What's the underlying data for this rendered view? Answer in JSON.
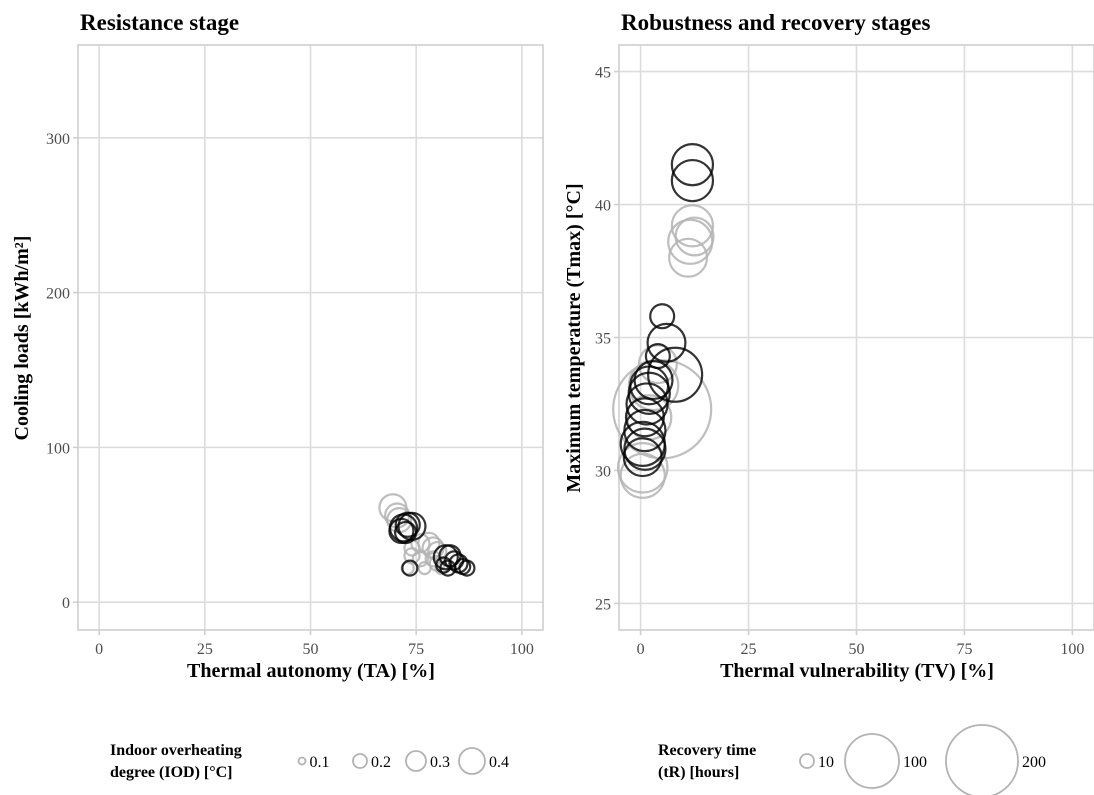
{
  "chart_data": [
    {
      "type": "scatter",
      "title": "Resistance stage",
      "xlabel": "Thermal autonomy (TA) [%]",
      "ylabel": "Cooling loads [kWh/m²]",
      "xlim": [
        -5,
        105
      ],
      "ylim": [
        -18,
        360
      ],
      "xticks": [
        0,
        25,
        50,
        75,
        100
      ],
      "yticks": [
        0,
        100,
        200,
        300
      ],
      "grid": true,
      "size_variable": "Indoor overheating degree (IOD) [°C]",
      "series": [
        {
          "name": "dark",
          "color": "#000000",
          "points": [
            {
              "x": 72,
              "y": 48,
              "s": 0.35
            },
            {
              "x": 71.5,
              "y": 46,
              "s": 0.3
            },
            {
              "x": 73,
              "y": 50,
              "s": 0.3
            },
            {
              "x": 74,
              "y": 49,
              "s": 0.35
            },
            {
              "x": 72.5,
              "y": 45,
              "s": 0.25
            },
            {
              "x": 82,
              "y": 29,
              "s": 0.3
            },
            {
              "x": 83,
              "y": 30,
              "s": 0.25
            },
            {
              "x": 84,
              "y": 27,
              "s": 0.2
            },
            {
              "x": 85,
              "y": 25,
              "s": 0.2
            },
            {
              "x": 86,
              "y": 23,
              "s": 0.15
            },
            {
              "x": 87,
              "y": 22,
              "s": 0.15
            },
            {
              "x": 81.5,
              "y": 24,
              "s": 0.15
            },
            {
              "x": 82.5,
              "y": 22,
              "s": 0.15
            },
            {
              "x": 73.5,
              "y": 22,
              "s": 0.15
            }
          ]
        },
        {
          "name": "light",
          "color": "#b3b3b3",
          "points": [
            {
              "x": 69.5,
              "y": 61,
              "s": 0.35
            },
            {
              "x": 70.5,
              "y": 56,
              "s": 0.3
            },
            {
              "x": 71,
              "y": 53,
              "s": 0.3
            },
            {
              "x": 74,
              "y": 35,
              "s": 0.15
            },
            {
              "x": 74,
              "y": 30,
              "s": 0.15
            },
            {
              "x": 76,
              "y": 28,
              "s": 0.15
            },
            {
              "x": 77,
              "y": 22,
              "s": 0.1
            },
            {
              "x": 78,
              "y": 38,
              "s": 0.25
            },
            {
              "x": 79,
              "y": 35,
              "s": 0.25
            },
            {
              "x": 80,
              "y": 33,
              "s": 0.2
            },
            {
              "x": 79,
              "y": 28,
              "s": 0.15
            },
            {
              "x": 80,
              "y": 25,
              "s": 0.15
            },
            {
              "x": 81,
              "y": 22,
              "s": 0.1
            },
            {
              "x": 73,
              "y": 22,
              "s": 0.1
            },
            {
              "x": 76,
              "y": 38,
              "s": 0.2
            }
          ]
        }
      ],
      "legend": {
        "title": "Indoor overheating degree (IOD) [°C]",
        "position": "bottom",
        "entries": [
          "0.1",
          "0.2",
          "0.3",
          "0.4"
        ]
      }
    },
    {
      "type": "scatter",
      "title": "Robustness and recovery stages",
      "xlabel": "Thermal vulnerability (TV) [%]",
      "ylabel": "Maximum temperature (Tmax) [°C]",
      "xlim": [
        -5,
        105
      ],
      "ylim": [
        24,
        46
      ],
      "xticks": [
        0,
        25,
        50,
        75,
        100
      ],
      "yticks": [
        25,
        30,
        35,
        40,
        45
      ],
      "grid": true,
      "size_variable": "Recovery time (tR) [hours]",
      "series": [
        {
          "name": "dark",
          "color": "#000000",
          "points": [
            {
              "x": 12,
              "y": 41.5,
              "s": 50
            },
            {
              "x": 12,
              "y": 40.9,
              "s": 50
            },
            {
              "x": 5,
              "y": 35.8,
              "s": 10
            },
            {
              "x": 6,
              "y": 34.8,
              "s": 40
            },
            {
              "x": 8,
              "y": 33.6,
              "s": 100
            },
            {
              "x": 4,
              "y": 34.3,
              "s": 10
            },
            {
              "x": 3,
              "y": 33.4,
              "s": 40
            },
            {
              "x": 2,
              "y": 32.9,
              "s": 50
            },
            {
              "x": 1.5,
              "y": 32.5,
              "s": 50
            },
            {
              "x": 1,
              "y": 32,
              "s": 40
            },
            {
              "x": 1,
              "y": 31.5,
              "s": 50
            },
            {
              "x": 0.5,
              "y": 31,
              "s": 60
            },
            {
              "x": 0.5,
              "y": 30.5,
              "s": 40
            },
            {
              "x": 1,
              "y": 30.8,
              "s": 50
            },
            {
              "x": 2,
              "y": 33.2,
              "s": 40
            }
          ]
        },
        {
          "name": "light",
          "color": "#b3b3b3",
          "points": [
            {
              "x": 12,
              "y": 39.2,
              "s": 50
            },
            {
              "x": 11.5,
              "y": 38.6,
              "s": 60
            },
            {
              "x": 11,
              "y": 38,
              "s": 40
            },
            {
              "x": 12.5,
              "y": 38.8,
              "s": 40
            },
            {
              "x": 5,
              "y": 32.3,
              "s": 400
            },
            {
              "x": 3,
              "y": 33.2,
              "s": 80
            },
            {
              "x": 4,
              "y": 34,
              "s": 40
            },
            {
              "x": 0.5,
              "y": 30.1,
              "s": 80
            },
            {
              "x": 0.5,
              "y": 29.8,
              "s": 60
            },
            {
              "x": 2,
              "y": 32,
              "s": 60
            }
          ]
        }
      ],
      "legend": {
        "title": "Recovery time (tR) [hours]",
        "position": "bottom",
        "entries": [
          "10",
          "100",
          "200"
        ]
      }
    }
  ],
  "left_legend": {
    "title_line1": "Indoor overheating",
    "title_line2": "degree (IOD) [°C]"
  },
  "right_legend": {
    "title_line1": "Recovery time",
    "title_line2": "(tR) [hours]"
  }
}
